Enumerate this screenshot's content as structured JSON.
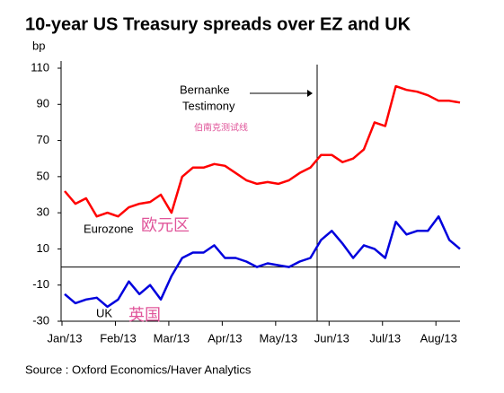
{
  "chart_data": {
    "type": "line",
    "title": "10-year US Treasury spreads over EZ and UK",
    "y_label": "bp",
    "source": "Source : Oxford Economics/Haver Analytics",
    "annotation": [
      "Bernanke",
      "Testimony"
    ],
    "annotation_cn": "伯南克测试线",
    "series_labels_cn": [
      "欧元区",
      "英国"
    ],
    "categories": [
      "Jan/13",
      null,
      null,
      null,
      null,
      "Feb/13",
      null,
      null,
      null,
      null,
      "Mar/13",
      null,
      null,
      null,
      null,
      "Apr/13",
      null,
      null,
      null,
      null,
      "May/13",
      null,
      null,
      null,
      null,
      "Jun/13",
      null,
      null,
      null,
      null,
      "Jul/13",
      null,
      null,
      null,
      null,
      "Aug/13",
      null,
      null
    ],
    "series": [
      {
        "name": "Eurozone",
        "color": "#ff0000",
        "values": [
          42,
          35,
          38,
          28,
          30,
          28,
          33,
          35,
          36,
          40,
          30,
          50,
          55,
          55,
          57,
          56,
          52,
          48,
          46,
          47,
          46,
          48,
          52,
          55,
          62,
          62,
          58,
          60,
          65,
          80,
          78,
          100,
          98,
          97,
          95,
          92,
          92,
          91
        ]
      },
      {
        "name": "UK",
        "color": "#0000dd",
        "values": [
          -15,
          -20,
          -18,
          -17,
          -22,
          -18,
          -8,
          -15,
          -10,
          -18,
          -5,
          5,
          8,
          8,
          12,
          5,
          5,
          3,
          0,
          2,
          1,
          0,
          3,
          5,
          15,
          20,
          13,
          5,
          12,
          10,
          5,
          25,
          18,
          20,
          20,
          28,
          15,
          10
        ]
      }
    ],
    "ylim": [
      -30,
      110
    ],
    "yticks": [
      -30,
      -10,
      10,
      30,
      50,
      70,
      90,
      110
    ],
    "zero_line": 0
  }
}
